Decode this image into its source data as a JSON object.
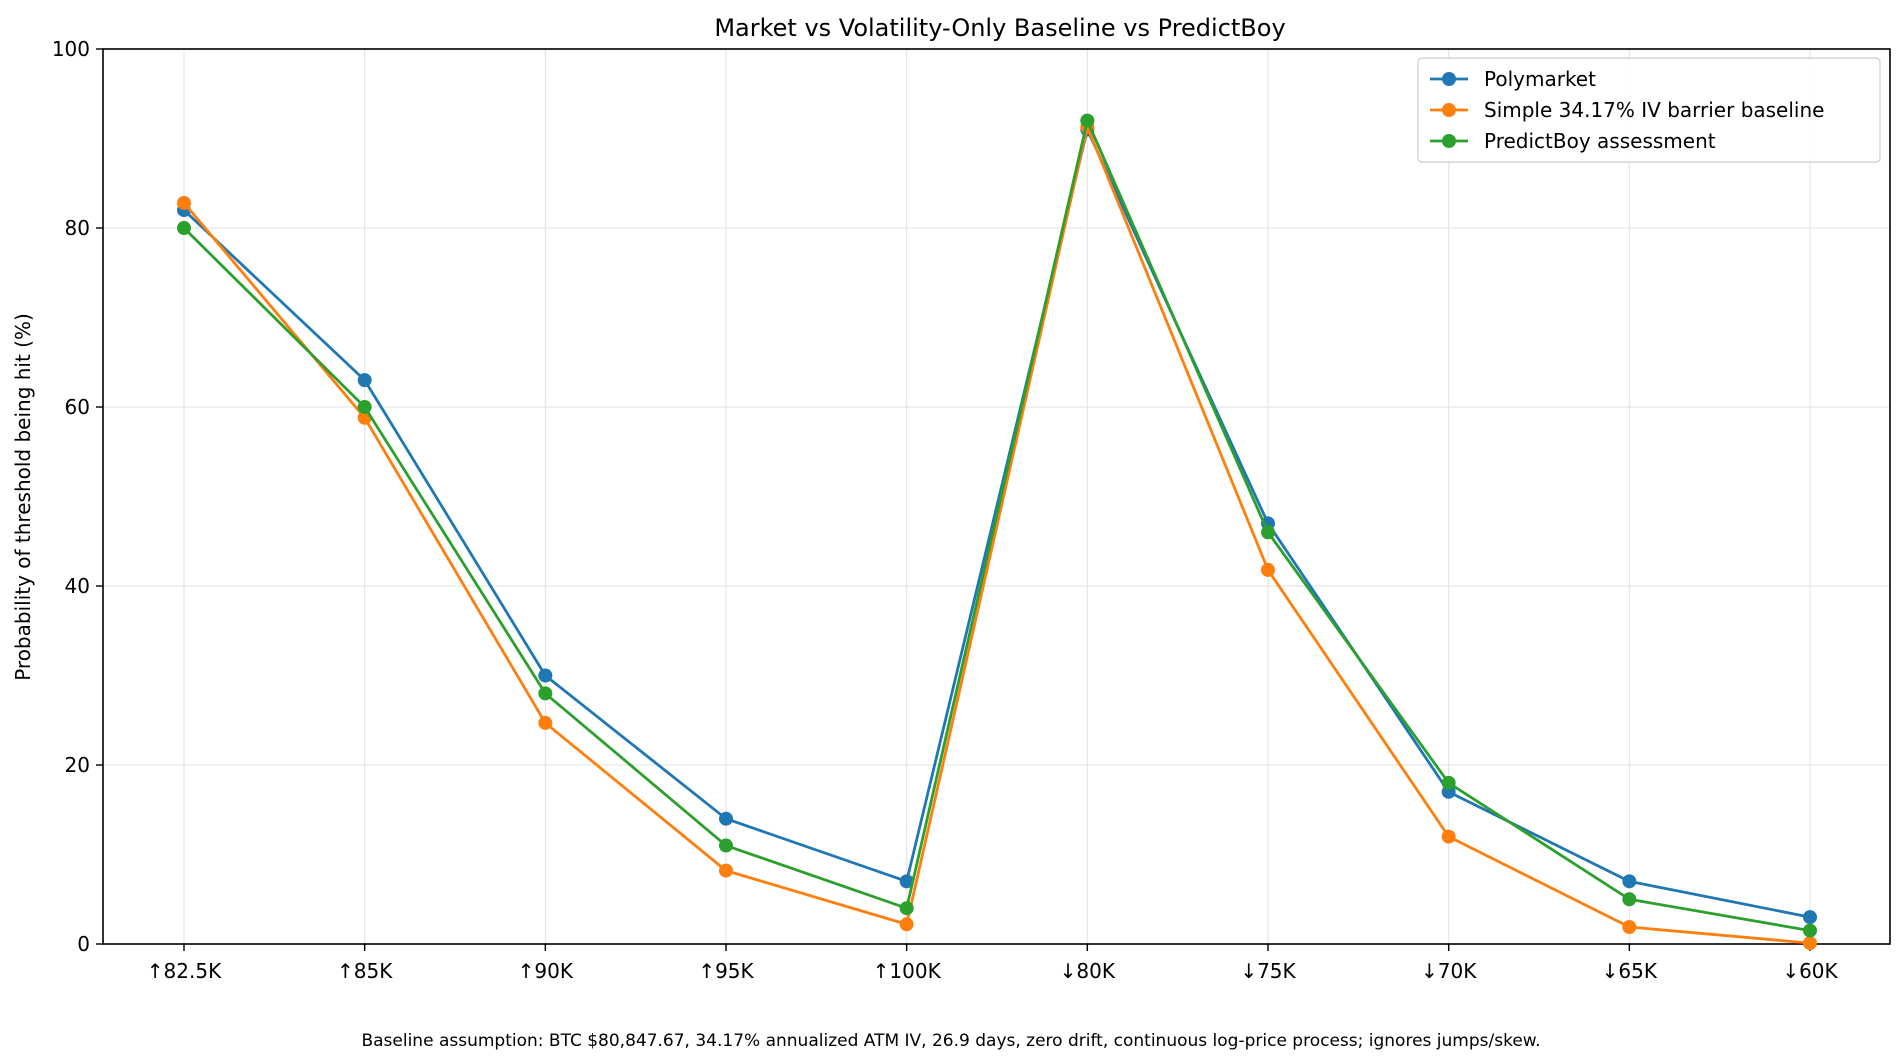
{
  "chart_data": {
    "type": "line",
    "title": "Market vs Volatility-Only Baseline vs PredictBoy",
    "xlabel": "",
    "ylabel": "Probability of threshold being hit (%)",
    "ylim": [
      0,
      100
    ],
    "yticks": [
      0,
      20,
      40,
      60,
      80,
      100
    ],
    "categories": [
      "↑82.5K",
      "↑85K",
      "↑90K",
      "↑95K",
      "↑100K",
      "↓80K",
      "↓75K",
      "↓70K",
      "↓65K",
      "↓60K"
    ],
    "grid": true,
    "legend_position": "top-right",
    "series": [
      {
        "name": "Polymarket",
        "color": "#1f77b4",
        "values": [
          82,
          63,
          30,
          14,
          7,
          91,
          47,
          17,
          7,
          3
        ]
      },
      {
        "name": "Simple 34.17% IV barrier baseline",
        "color": "#ff7f0e",
        "values": [
          82.8,
          58.8,
          24.7,
          8.2,
          2.2,
          91.3,
          41.8,
          12,
          1.9,
          0.1
        ]
      },
      {
        "name": "PredictBoy assessment",
        "color": "#2ca02c",
        "values": [
          80,
          60,
          28,
          11,
          4,
          92,
          46,
          18,
          5,
          1.5
        ]
      }
    ],
    "footnote": "Baseline assumption: BTC $80,847.67, 34.17% annualized ATM IV, 26.9 days, zero drift, continuous log-price process; ignores jumps/skew."
  }
}
